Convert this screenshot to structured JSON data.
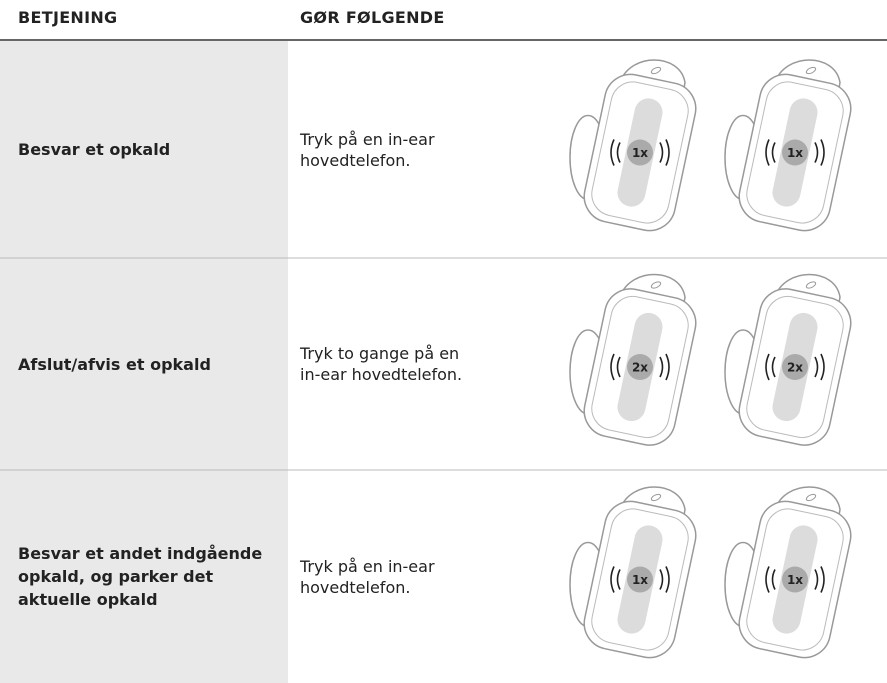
{
  "header": {
    "columns": [
      "BETJENING",
      "GØR FØLGENDE"
    ]
  },
  "rows": [
    {
      "action": [
        "Besvar et opkald"
      ],
      "instruction": [
        "Tryk på en in-ear",
        "hovedtelefon."
      ],
      "left_tap": "1x",
      "right_tap": "1x"
    },
    {
      "action": [
        "Afslut/afvis et opkald"
      ],
      "instruction": [
        "Tryk to gange på en",
        "in-ear hovedtelefon."
      ],
      "left_tap": "2x",
      "right_tap": "2x"
    },
    {
      "action": [
        "Besvar et andet indgående",
        "opkald, og parker det",
        "aktuelle opkald"
      ],
      "instruction": [
        "Tryk på en in-ear",
        "hovedtelefon."
      ],
      "left_tap": "1x",
      "right_tap": "1x"
    }
  ]
}
